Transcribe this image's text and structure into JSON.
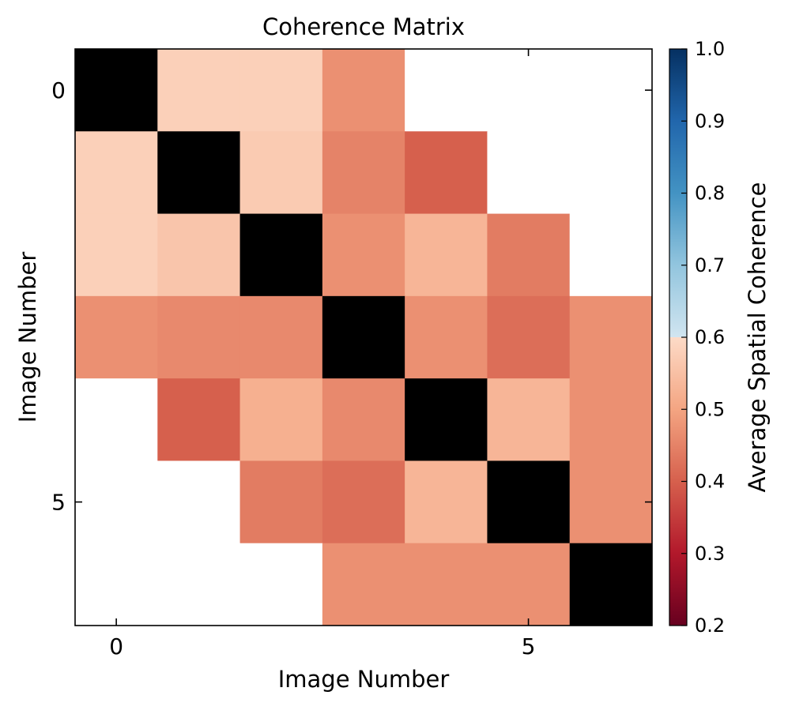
{
  "chart_data": {
    "type": "heatmap",
    "title": "Coherence Matrix",
    "xlabel": "Image Number",
    "ylabel": "Image Number",
    "x_ticks": [
      0,
      5
    ],
    "y_ticks": [
      0,
      5
    ],
    "size": 7,
    "diagonal_color": "#000000",
    "missing_color": "#ffffff",
    "matrix": [
      [
        null,
        0.58,
        0.58,
        0.47,
        null,
        null,
        null
      ],
      [
        0.58,
        null,
        0.57,
        0.45,
        0.4,
        null,
        null
      ],
      [
        0.58,
        0.56,
        null,
        0.47,
        0.53,
        0.44,
        null
      ],
      [
        0.47,
        0.46,
        0.46,
        null,
        0.47,
        0.42,
        0.47
      ],
      [
        null,
        0.4,
        0.52,
        0.46,
        null,
        0.53,
        0.47
      ],
      [
        null,
        null,
        0.44,
        0.42,
        0.53,
        null,
        0.47
      ],
      [
        null,
        null,
        null,
        0.47,
        0.47,
        0.47,
        null
      ]
    ],
    "colorbar": {
      "label": "Average Spatial Coherence",
      "range": [
        0.2,
        1.0
      ],
      "ticks": [
        "0.2",
        "0.3",
        "0.4",
        "0.5",
        "0.6",
        "0.7",
        "0.8",
        "0.9",
        "1.0"
      ],
      "colormap": "RdBu"
    }
  }
}
